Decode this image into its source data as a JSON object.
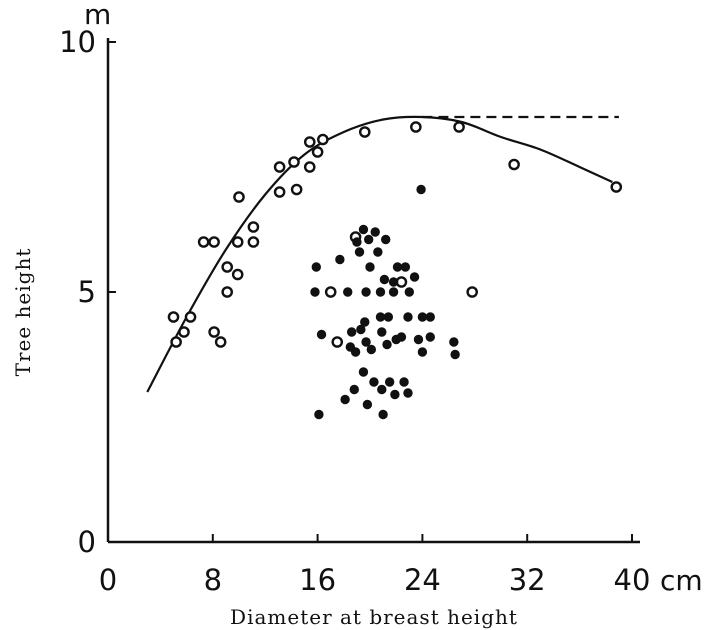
{
  "chart_data": {
    "type": "scatter",
    "xlabel": "Diameter at breast height",
    "ylabel": "Tree height",
    "x_unit": "cm",
    "y_unit": "m",
    "xlim": [
      0,
      40
    ],
    "ylim": [
      0,
      10
    ],
    "x_ticks": [
      0,
      8,
      16,
      24,
      32,
      40
    ],
    "y_ticks": [
      0,
      5,
      10
    ],
    "grid": false,
    "series": [
      {
        "marker": "open-circle",
        "points": [
          [
            5,
            4.5
          ],
          [
            5.2,
            4.0
          ],
          [
            5.8,
            4.2
          ],
          [
            6.3,
            4.5
          ],
          [
            7.3,
            6.0
          ],
          [
            8.1,
            6.0
          ],
          [
            8.1,
            4.2
          ],
          [
            8.6,
            4.0
          ],
          [
            9.1,
            5.5
          ],
          [
            9.1,
            5.0
          ],
          [
            9.9,
            6.0
          ],
          [
            9.9,
            5.35
          ],
          [
            10.0,
            6.9
          ],
          [
            11.1,
            6.3
          ],
          [
            11.1,
            6.0
          ],
          [
            13.1,
            7.5
          ],
          [
            13.1,
            7.0
          ],
          [
            14.2,
            7.6
          ],
          [
            14.4,
            7.05
          ],
          [
            15.4,
            7.5
          ],
          [
            15.4,
            8.0
          ],
          [
            16.0,
            7.8
          ],
          [
            16.4,
            8.05
          ],
          [
            19.6,
            8.2
          ],
          [
            18.9,
            6.1
          ],
          [
            17.0,
            5.0
          ],
          [
            17.5,
            4.0
          ],
          [
            23.5,
            8.3
          ],
          [
            26.8,
            8.3
          ],
          [
            22.4,
            5.2
          ],
          [
            27.8,
            5.0
          ],
          [
            31.0,
            7.55
          ],
          [
            38.8,
            7.1
          ]
        ]
      },
      {
        "marker": "filled-circle",
        "points": [
          [
            23.9,
            7.05
          ],
          [
            19.5,
            6.25
          ],
          [
            19.9,
            6.05
          ],
          [
            20.4,
            6.2
          ],
          [
            21.2,
            6.05
          ],
          [
            19.0,
            6.0
          ],
          [
            19.2,
            5.8
          ],
          [
            20.6,
            5.8
          ],
          [
            17.7,
            5.65
          ],
          [
            15.9,
            5.5
          ],
          [
            20.0,
            5.5
          ],
          [
            22.1,
            5.5
          ],
          [
            22.7,
            5.5
          ],
          [
            21.1,
            5.25
          ],
          [
            21.8,
            5.2
          ],
          [
            23.4,
            5.3
          ],
          [
            15.8,
            5.0
          ],
          [
            18.3,
            5.0
          ],
          [
            19.7,
            5.0
          ],
          [
            20.8,
            5.0
          ],
          [
            21.8,
            5.0
          ],
          [
            23.0,
            5.0
          ],
          [
            16.3,
            4.15
          ],
          [
            18.6,
            4.2
          ],
          [
            19.6,
            4.4
          ],
          [
            20.8,
            4.5
          ],
          [
            21.4,
            4.5
          ],
          [
            22.9,
            4.5
          ],
          [
            24.0,
            4.5
          ],
          [
            24.6,
            4.5
          ],
          [
            19.3,
            4.25
          ],
          [
            20.9,
            4.2
          ],
          [
            22.0,
            4.05
          ],
          [
            22.4,
            4.1
          ],
          [
            23.7,
            4.05
          ],
          [
            24.6,
            4.1
          ],
          [
            26.4,
            4.0
          ],
          [
            18.5,
            3.9
          ],
          [
            19.7,
            4.0
          ],
          [
            21.3,
            3.95
          ],
          [
            18.9,
            3.8
          ],
          [
            20.1,
            3.85
          ],
          [
            24.0,
            3.8
          ],
          [
            26.5,
            3.75
          ],
          [
            19.5,
            3.4
          ],
          [
            20.3,
            3.2
          ],
          [
            21.5,
            3.2
          ],
          [
            22.6,
            3.2
          ],
          [
            18.8,
            3.05
          ],
          [
            20.9,
            3.05
          ],
          [
            21.9,
            2.95
          ],
          [
            22.9,
            2.98
          ],
          [
            18.1,
            2.85
          ],
          [
            19.8,
            2.75
          ],
          [
            16.1,
            2.55
          ],
          [
            21.0,
            2.55
          ]
        ]
      }
    ],
    "curves": [
      {
        "style": "solid",
        "points": [
          [
            3,
            3.0
          ],
          [
            6,
            4.5
          ],
          [
            9,
            5.85
          ],
          [
            12,
            6.95
          ],
          [
            15,
            7.75
          ],
          [
            18,
            8.2
          ],
          [
            21,
            8.45
          ],
          [
            24,
            8.5
          ],
          [
            27,
            8.4
          ],
          [
            30,
            8.1
          ],
          [
            33,
            7.85
          ],
          [
            36,
            7.5
          ],
          [
            38.5,
            7.2
          ]
        ]
      },
      {
        "style": "dashed",
        "points": [
          [
            24,
            8.5
          ],
          [
            39,
            8.5
          ]
        ]
      }
    ]
  }
}
